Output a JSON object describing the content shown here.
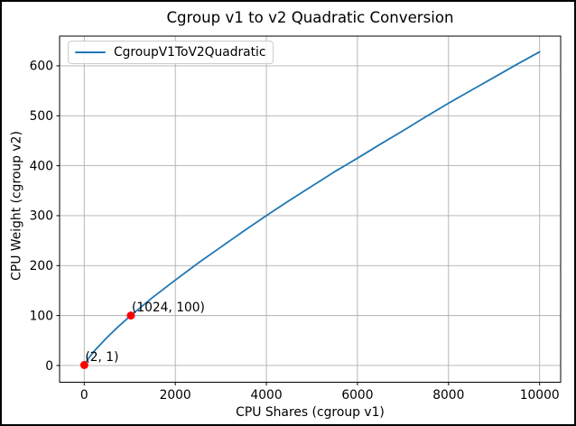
{
  "figure": {
    "background": "#ffffff",
    "border_color": "#000000"
  },
  "chart_data": {
    "type": "line",
    "title": "Cgroup v1 to v2 Quadratic Conversion",
    "xlabel": "CPU Shares (cgroup v1)",
    "ylabel": "CPU Weight (cgroup v2)",
    "legend": [
      "CgroupV1ToV2Quadratic"
    ],
    "legend_position": "upper left",
    "grid": true,
    "xlim": [
      -541,
      10462
    ],
    "ylim": [
      -33.5,
      659.5
    ],
    "xticks": [
      0,
      2000,
      4000,
      6000,
      8000,
      10000
    ],
    "yticks": [
      0,
      100,
      200,
      300,
      400,
      500,
      600
    ],
    "colors": {
      "line": "#1f77b4",
      "marker": "#ff0000",
      "grid": "#b0b0b0",
      "spine": "#000000",
      "text": "#000000",
      "legend_border": "#cccccc"
    },
    "series": [
      {
        "name": "CgroupV1ToV2Quadratic",
        "x": [
          2,
          100,
          250,
          500,
          750,
          1024,
          1500,
          2000,
          2500,
          3000,
          3500,
          4000,
          4500,
          5000,
          5500,
          6000,
          6500,
          7000,
          7500,
          8000,
          8500,
          9000,
          9500,
          10000
        ],
        "y": [
          1,
          15,
          32,
          56,
          78,
          100,
          136,
          171,
          205,
          237,
          269,
          300,
          330,
          359,
          388,
          415,
          443,
          470,
          498,
          525,
          551,
          577,
          603,
          628
        ]
      }
    ],
    "markers": [
      {
        "x": 2,
        "y": 1,
        "label": "(2, 1)"
      },
      {
        "x": 1024,
        "y": 100,
        "label": "(1024, 100)"
      }
    ]
  }
}
